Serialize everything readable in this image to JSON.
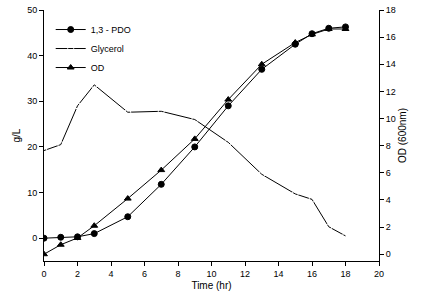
{
  "chart_data": {
    "type": "scatter",
    "x_label": "Time (hr)",
    "y_label": "g/L",
    "y2_label": "OD (600nm)",
    "x": [
      0,
      1,
      2,
      3,
      5,
      7,
      9,
      11,
      13,
      15,
      16,
      17,
      18
    ],
    "series": [
      {
        "name": "1,3 - PDO",
        "color": "#000000",
        "marker": "circle",
        "line_style": "solid",
        "values": [
          0,
          0.2,
          0.3,
          1,
          4.7,
          11.8,
          20,
          29,
          37,
          42.5,
          44.8,
          46,
          46.3
        ]
      },
      {
        "name": "Glycerol",
        "color": "#000000",
        "marker": "circle-open",
        "line_style": "solid",
        "values": [
          19.2,
          20.5,
          29,
          33.6,
          27.6,
          27.8,
          26,
          21,
          14,
          9.7,
          8.5,
          2.5,
          0.5
        ]
      },
      {
        "name": "OD",
        "color": "#000000",
        "marker": "triangle-up",
        "line_style": "solid",
        "axis": "y2",
        "values": [
          0,
          0.7,
          1.2,
          2.1,
          4.1,
          6.2,
          8.5,
          11.4,
          14,
          15.6,
          16.2,
          16.6,
          16.6
        ]
      }
    ],
    "xlim": [
      0,
      20
    ],
    "xticks": [
      0,
      2,
      4,
      6,
      8,
      10,
      12,
      14,
      16,
      18,
      20
    ],
    "ylim": [
      -5,
      50
    ],
    "yticks": [
      0,
      10,
      20,
      30,
      40,
      50
    ],
    "y2lim": [
      -0.5,
      18
    ],
    "y2ticks": [
      0,
      2,
      4,
      6,
      8,
      10,
      12,
      14,
      16,
      18
    ],
    "grid": false,
    "legend": "upper left"
  }
}
